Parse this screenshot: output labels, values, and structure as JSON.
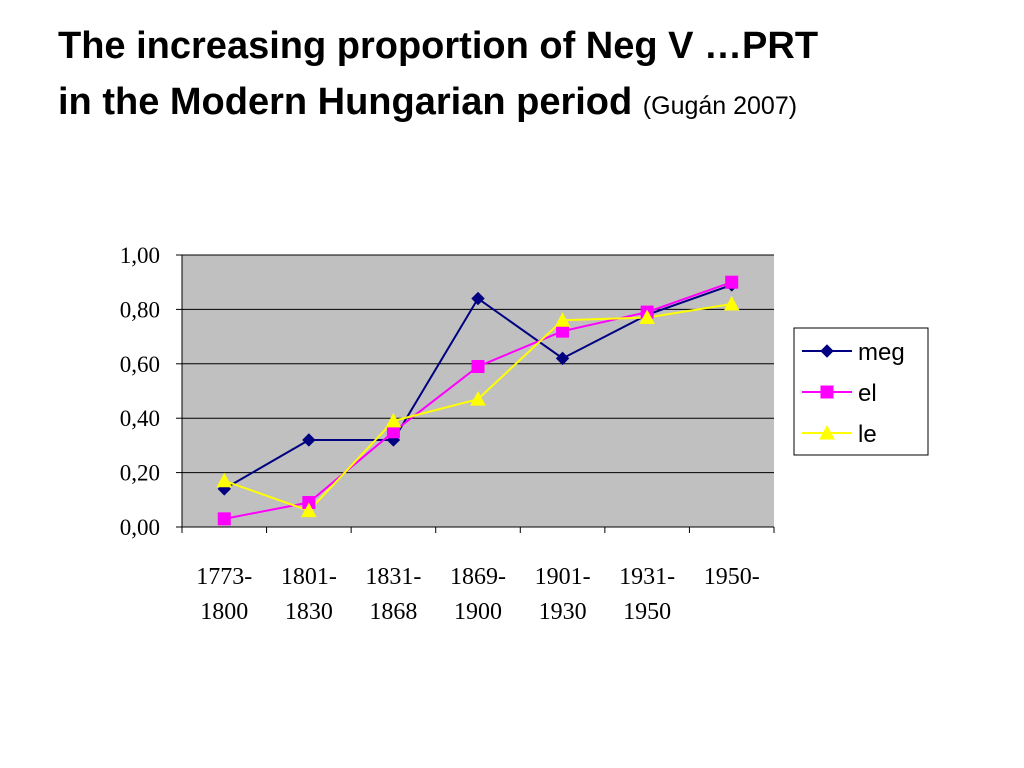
{
  "slide": {
    "title_line1": "The increasing proportion of Neg V …PRT",
    "title_line2": "in the Modern Hungarian period",
    "citation": "(Gugán 2007)"
  },
  "chart_data": {
    "type": "line",
    "title": "",
    "xlabel": "",
    "ylabel": "",
    "ylim": [
      0,
      1
    ],
    "y_ticks": [
      "0,00",
      "0,20",
      "0,40",
      "0,60",
      "0,80",
      "1,00"
    ],
    "y_tick_values": [
      0,
      0.2,
      0.4,
      0.6,
      0.8,
      1.0
    ],
    "categories": [
      [
        "1773-",
        "1800"
      ],
      [
        "1801-",
        "1830"
      ],
      [
        "1831-",
        "1868"
      ],
      [
        "1869-",
        "1900"
      ],
      [
        "1901-",
        "1930"
      ],
      [
        "1931-",
        "1950"
      ],
      [
        "1950-",
        ""
      ]
    ],
    "grid": true,
    "plot_background": "#c0c0c0",
    "legend_position": "right",
    "series": [
      {
        "name": "meg",
        "color": "#000080",
        "marker": "diamond",
        "values": [
          0.14,
          0.32,
          0.32,
          0.84,
          0.62,
          0.78,
          0.89
        ]
      },
      {
        "name": "el",
        "color": "#ff00ff",
        "marker": "square",
        "values": [
          0.03,
          0.09,
          0.35,
          0.59,
          0.72,
          0.79,
          0.9
        ]
      },
      {
        "name": "le",
        "color": "#ffff00",
        "marker": "triangle",
        "values": [
          0.17,
          0.06,
          0.39,
          0.47,
          0.76,
          0.77,
          0.82
        ]
      }
    ]
  }
}
